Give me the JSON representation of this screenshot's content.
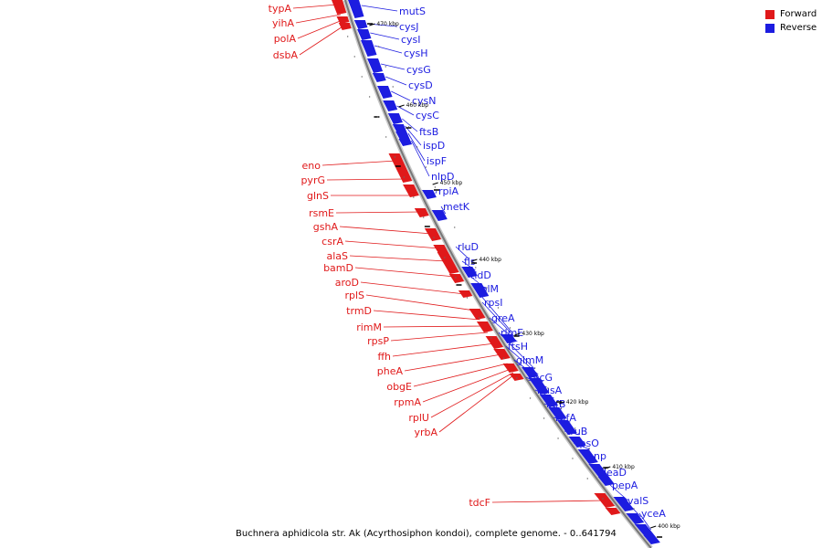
{
  "legend": {
    "forward_label": "Forward",
    "reverse_label": "Reverse",
    "forward_color": "#e0191a",
    "reverse_color": "#1c1ce0"
  },
  "caption": "Buchnera aphidicola str. Ak (Acyrthosiphon kondoi), complete genome. - 0..641794",
  "ticks": [
    "470 kbp",
    "460 kbp",
    "450 kbp",
    "440 kbp",
    "430 kbp",
    "420 kbp",
    "410 kbp",
    "400 kbp"
  ],
  "forward_genes": [
    "typA",
    "yihA",
    "polA",
    "dsbA",
    "eno",
    "pyrG",
    "glnS",
    "rsmE",
    "gshA",
    "csrA",
    "alaS",
    "bamD",
    "aroD",
    "rplS",
    "trmD",
    "rimM",
    "rpsP",
    "ffh",
    "pheA",
    "obgE",
    "rpmA",
    "rplU",
    "yrbA",
    "tdcF"
  ],
  "reverse_genes": [
    "mutS",
    "cysJ",
    "cysI",
    "cysH",
    "cysG",
    "cysD",
    "cysN",
    "cysC",
    "ftsB",
    "ispD",
    "ispF",
    "nlpD",
    "rpiA",
    "metK",
    "rluD",
    "fis",
    "tldD",
    "rplM",
    "rpsI",
    "greA",
    "rlmE",
    "ftsH",
    "glmM",
    "secG",
    "nusA",
    "infB",
    "rbfA",
    "truB",
    "rpsO",
    "pnp",
    "deaD",
    "pepA",
    "valS",
    "yceA"
  ]
}
